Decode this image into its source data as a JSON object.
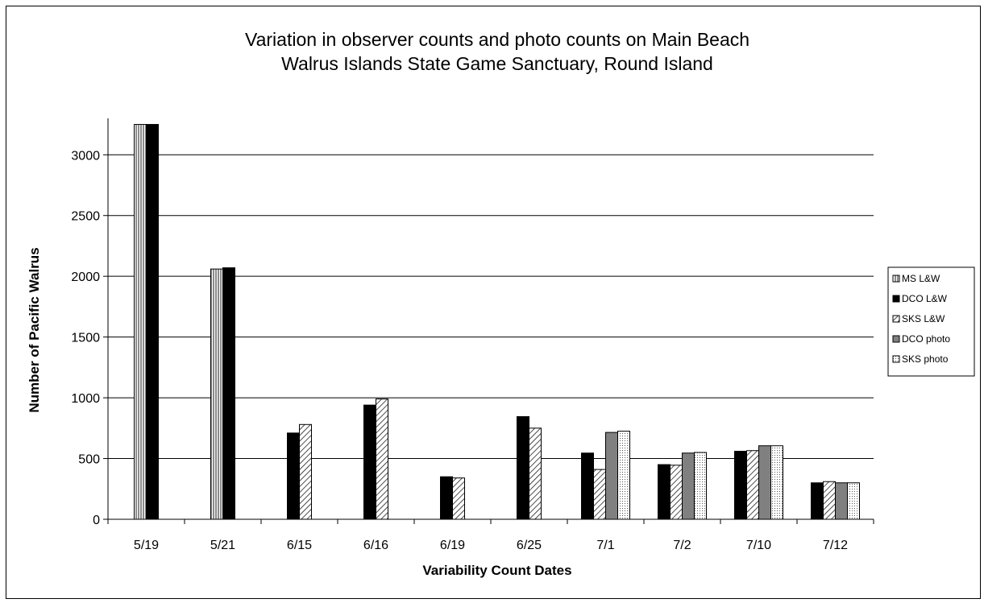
{
  "chart_data": {
    "type": "bar",
    "title": [
      "Variation in observer counts and photo counts on Main Beach",
      "Walrus Islands State Game Sanctuary, Round Island"
    ],
    "xlabel": "Variability Count Dates",
    "ylabel": "Number of Pacific Walrus",
    "ylim": [
      0,
      3300
    ],
    "yticks": [
      0,
      500,
      1000,
      1500,
      2000,
      2500,
      3000
    ],
    "grid": true,
    "legend_position": "right",
    "categories": [
      "5/19",
      "5/21",
      "6/15",
      "6/16",
      "6/19",
      "6/25",
      "7/1",
      "7/2",
      "7/10",
      "7/12"
    ],
    "series": [
      {
        "name": "MS L&W",
        "pattern": "vertical-lines",
        "values": [
          3250,
          2060,
          null,
          null,
          null,
          null,
          null,
          null,
          null,
          null
        ]
      },
      {
        "name": "DCO L&W",
        "pattern": "solid-black",
        "values": [
          3250,
          2070,
          710,
          940,
          350,
          845,
          545,
          450,
          560,
          300
        ]
      },
      {
        "name": "SKS L&W",
        "pattern": "diagonal-lines",
        "values": [
          null,
          null,
          780,
          990,
          340,
          750,
          410,
          445,
          565,
          310
        ]
      },
      {
        "name": "DCO photo",
        "pattern": "gray",
        "values": [
          null,
          null,
          null,
          null,
          null,
          null,
          715,
          545,
          605,
          300
        ]
      },
      {
        "name": "SKS photo",
        "pattern": "dotted",
        "values": [
          null,
          null,
          null,
          null,
          null,
          null,
          725,
          550,
          605,
          300
        ]
      }
    ]
  }
}
